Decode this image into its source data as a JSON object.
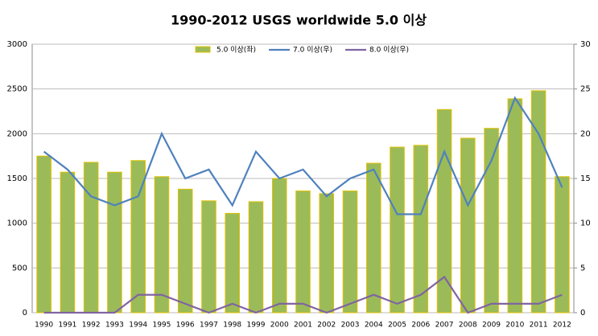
{
  "chart_data": {
    "type": "bar",
    "title": "1990-2012 USGS worldwide 5.0 이상",
    "categories": [
      "1990",
      "1991",
      "1992",
      "1993",
      "1994",
      "1995",
      "1996",
      "1997",
      "1998",
      "1999",
      "2000",
      "2001",
      "2002",
      "2003",
      "2004",
      "2005",
      "2006",
      "2007",
      "2008",
      "2009",
      "2010",
      "2011",
      "2012"
    ],
    "series": [
      {
        "name": "5.0 이상(좌)",
        "type": "bar",
        "color": "#9bbb59",
        "values": [
          1750,
          1570,
          1680,
          1570,
          1700,
          1520,
          1380,
          1250,
          1110,
          1240,
          1500,
          1360,
          1330,
          1360,
          1670,
          1850,
          1870,
          2270,
          1950,
          2060,
          2390,
          2480,
          1520
        ]
      },
      {
        "name": "7.0 이상(우)",
        "type": "line",
        "axis": "y2",
        "color": "#4f81bd",
        "values": [
          18,
          16,
          13,
          12,
          13,
          20,
          15,
          16,
          12,
          18,
          15,
          16,
          13,
          15,
          16,
          11,
          11,
          18,
          12,
          17,
          24,
          20,
          14
        ]
      },
      {
        "name": "8.0 이상(우)",
        "type": "line",
        "axis": "y2",
        "color": "#8064a2",
        "values": [
          0,
          0,
          0,
          0,
          2,
          2,
          1,
          0,
          1,
          0,
          1,
          1,
          0,
          1,
          2,
          1,
          2,
          4,
          0,
          1,
          1,
          1,
          2
        ]
      }
    ],
    "ylim": [
      0,
      3000
    ],
    "yticks": [
      0,
      500,
      1000,
      1500,
      2000,
      2500,
      3000
    ],
    "y2lim": [
      0,
      30
    ],
    "y2ticks": [
      0,
      5,
      10,
      15,
      20,
      25,
      30
    ],
    "grid": true,
    "legend": "top"
  }
}
